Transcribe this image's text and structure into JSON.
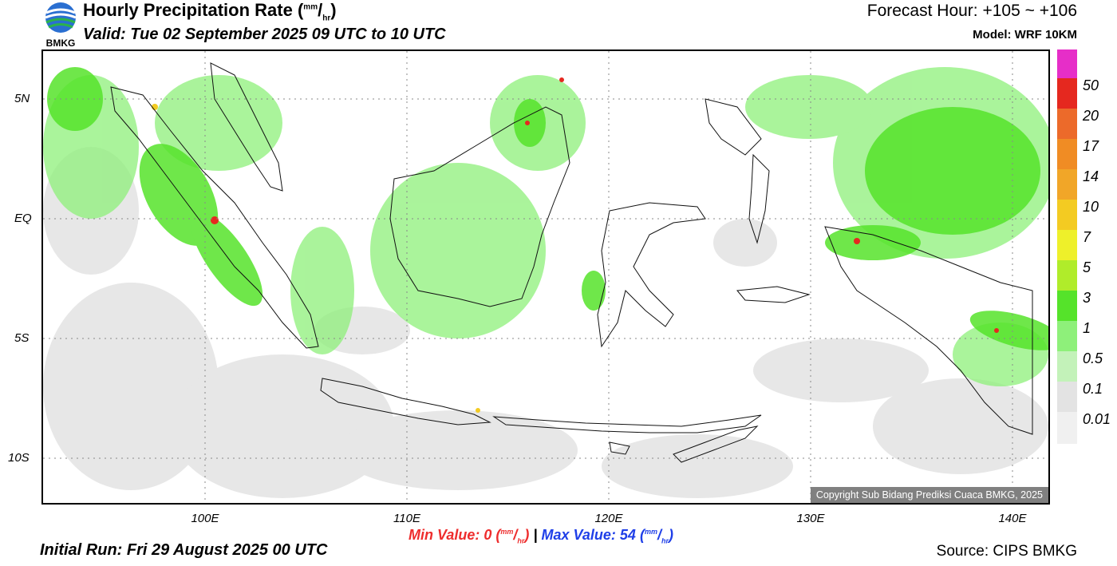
{
  "header": {
    "title": "Hourly Precipitation Rate",
    "unit_num": "mm",
    "unit_den": "hr",
    "valid": "Valid: Tue 02 September 2025 09 UTC to 10 UTC",
    "forecast_hour": "Forecast Hour: +105 ~ +106",
    "model": "Model: WRF 10KM",
    "logo_text": "BMKG"
  },
  "map": {
    "lat_labels": [
      "5N",
      "EQ",
      "5S",
      "10S"
    ],
    "lon_labels": [
      "100E",
      "110E",
      "120E",
      "130E",
      "140E"
    ],
    "copyright": "Copyright Sub Bidang Prediksi Cuaca BMKG, 2025"
  },
  "colorbar": {
    "labels": [
      "50",
      "20",
      "17",
      "14",
      "10",
      "7",
      "5",
      "3",
      "1",
      "0.5",
      "0.1",
      "0.01"
    ],
    "colors": [
      "#e62ec8",
      "#e5281f",
      "#ec6a2a",
      "#f08c24",
      "#f1a628",
      "#f3cb22",
      "#eef02a",
      "#b0ec2a",
      "#55e32a",
      "#8ef07a",
      "#c3f2b9",
      "#e3e3e3"
    ]
  },
  "footer": {
    "min_label": "Min Value:",
    "min_value": "0",
    "separator": "|",
    "max_label": "Max Value:",
    "max_value": "54",
    "initial_run": "Initial Run: Fri 29 August 2025 00 UTC",
    "source": "Source: CIPS BMKG"
  },
  "colors": {
    "green_light": "#8ef07a",
    "green": "#55e32a",
    "gray_light": "#e3e3e3",
    "red": "#e5281f"
  }
}
